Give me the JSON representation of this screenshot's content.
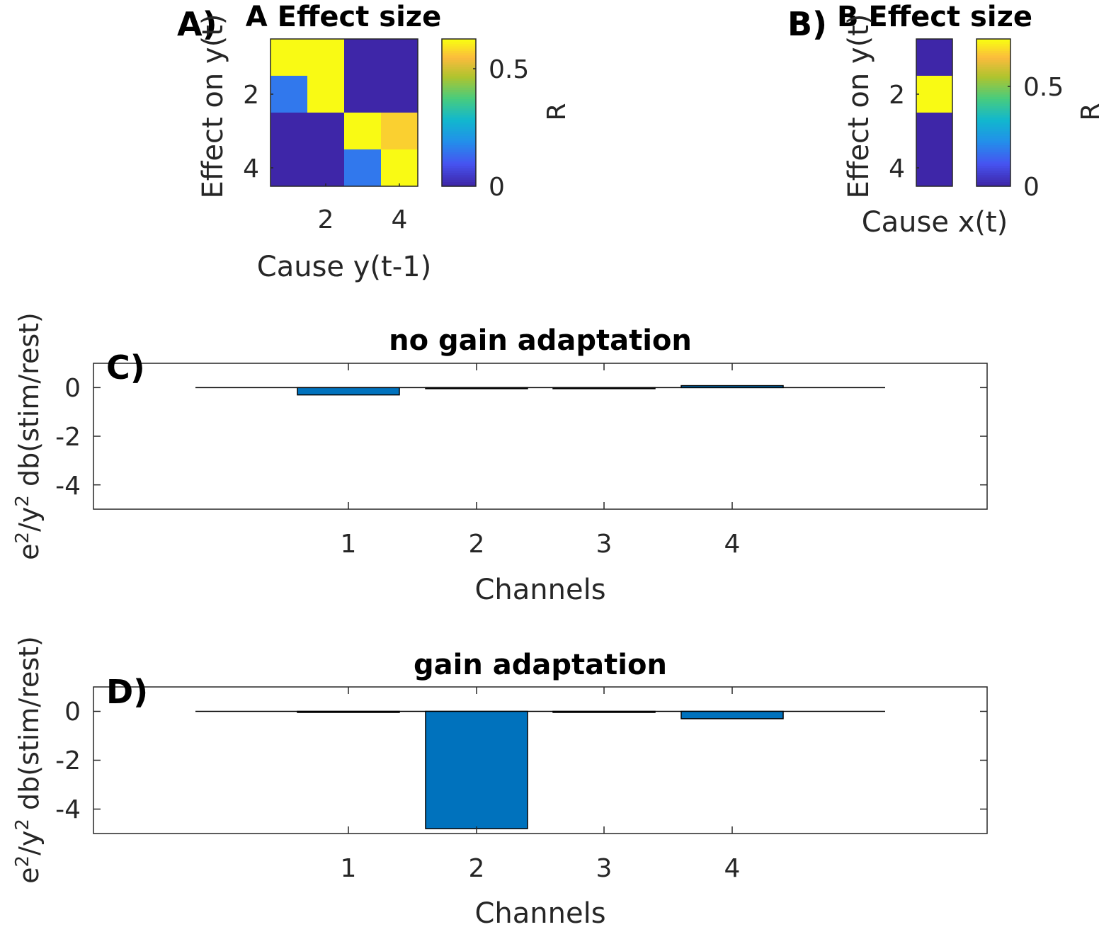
{
  "chart_data": [
    {
      "type": "heatmap",
      "panel_label": "A)",
      "title": "A Effect size",
      "xlabel": "Cause y(t-1)",
      "ylabel": "Effect on y(t)",
      "x_ticks": [
        "2",
        "4"
      ],
      "y_ticks": [
        "2",
        "4"
      ],
      "colorbar": {
        "label": "R",
        "ticks": [
          "0",
          "0.5"
        ],
        "range": [
          0,
          0.62
        ]
      },
      "values": [
        [
          0.62,
          0.62,
          0.0,
          0.0
        ],
        [
          0.15,
          0.62,
          0.0,
          0.0
        ],
        [
          0.0,
          0.0,
          0.62,
          0.57
        ],
        [
          0.0,
          0.0,
          0.15,
          0.62
        ]
      ]
    },
    {
      "type": "heatmap",
      "panel_label": "B)",
      "title": "B Effect size",
      "xlabel": "Cause x(t)",
      "ylabel": "Effect on y(t)",
      "x_ticks": [],
      "y_ticks": [
        "2",
        "4"
      ],
      "colorbar": {
        "label": "R",
        "ticks": [
          "0",
          "0.5"
        ],
        "range": [
          0,
          0.7
        ]
      },
      "values": [
        [
          0.0
        ],
        [
          0.7
        ],
        [
          0.0
        ],
        [
          0.0
        ]
      ]
    },
    {
      "type": "bar",
      "panel_label": "C)",
      "title": "no gain adaptation",
      "xlabel": "Channels",
      "ylabel": "e2/y2 db(stim/rest)",
      "categories": [
        "1",
        "2",
        "3",
        "4"
      ],
      "values": [
        -0.3,
        0.0,
        -0.02,
        0.08
      ],
      "ylim": [
        -5,
        1
      ],
      "yticks": [
        "0",
        "-2",
        "-4"
      ],
      "color": "#0072BD"
    },
    {
      "type": "bar",
      "panel_label": "D)",
      "title": "gain adaptation",
      "xlabel": "Channels",
      "ylabel": "e2/y2 db(stim/rest)",
      "categories": [
        "1",
        "2",
        "3",
        "4"
      ],
      "values": [
        0.0,
        -4.8,
        0.0,
        -0.3
      ],
      "ylim": [
        -5,
        1
      ],
      "yticks": [
        "0",
        "-2",
        "-4"
      ],
      "color": "#0072BD"
    }
  ]
}
